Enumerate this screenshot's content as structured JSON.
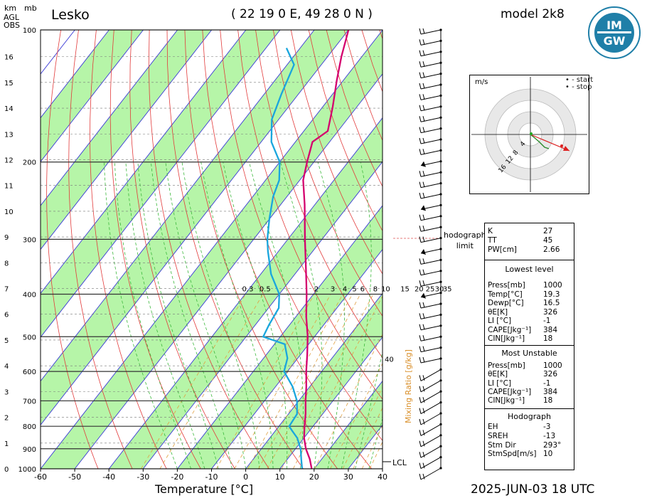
{
  "header": {
    "station": "Lesko",
    "coords": "( 22 19 0 E, 49 28 0 N )",
    "model": "model 2k8",
    "axis_km_title": "km",
    "axis_agl_1": "AGL",
    "axis_agl_2": "OBS",
    "axis_mb_title": "mb"
  },
  "footer": {
    "date": "2025-JUN-03",
    "time": "18 UTC",
    "date_time": "2025-JUN-03   18 UTC",
    "xlabel": "Temperature [°C]"
  },
  "logo": {
    "text_top": "IM",
    "text_bottom": "GW",
    "color": "#1f7fa8"
  },
  "mixing_ratio": {
    "label": "Mixing Ratio [g/kg]",
    "ticks": [
      "0.3",
      "0.5",
      "2",
      "3",
      "4",
      "5",
      "6",
      "8",
      "10",
      "15",
      "20",
      "25",
      "30",
      "35",
      "40"
    ]
  },
  "hodograph": {
    "units": "m/s",
    "legend_start": "• - start",
    "legend_stop": "• - stop",
    "ring_labels": [
      "4",
      "8",
      "12",
      "16"
    ],
    "limit_label_1": "hodograph",
    "limit_label_2": "limit",
    "colors": {
      "start": "#22aa22",
      "stop": "#dd2222"
    }
  },
  "lcl_label": "LCL",
  "indices": {
    "top": [
      {
        "k": "K",
        "v": "27"
      },
      {
        "k": "TT",
        "v": "45"
      },
      {
        "k": "PW[cm]",
        "v": "2.66"
      }
    ],
    "lowest_level_title": "Lowest level",
    "lowest_level": [
      {
        "k": "Press[mb]",
        "v": "1000"
      },
      {
        "k": "Temp[°C]",
        "v": "19.3"
      },
      {
        "k": "Dewp[°C]",
        "v": "16.5"
      },
      {
        "k": "θE[K]",
        "v": "326"
      },
      {
        "k": "LI [°C]",
        "v": "-1"
      },
      {
        "k": "CAPE[Jkg⁻¹]",
        "v": "384"
      },
      {
        "k": "CIN[Jkg⁻¹]",
        "v": "18"
      }
    ],
    "most_unstable_title": "Most Unstable",
    "most_unstable": [
      {
        "k": "Press[mb]",
        "v": "1000"
      },
      {
        "k": "θE[K]",
        "v": "326"
      },
      {
        "k": "LI [°C]",
        "v": "-1"
      },
      {
        "k": "CAPE[Jkg⁻¹]",
        "v": "384"
      },
      {
        "k": "CIN[Jkg⁻¹]",
        "v": "18"
      }
    ],
    "hodograph_title": "Hodograph",
    "hodograph": [
      {
        "k": "EH",
        "v": "-3"
      },
      {
        "k": "SREH",
        "v": "-13"
      },
      {
        "k": "Stm Dir",
        "v": "293°"
      },
      {
        "k": "StmSpd[m/s]",
        "v": "10"
      }
    ]
  },
  "chart_data": {
    "type": "line",
    "subtype": "skew-T log-P diagram",
    "xlabel": "Temperature [°C]",
    "ylabel": "mb",
    "x_ticks": [
      -60,
      -50,
      -40,
      -30,
      -20,
      -10,
      0,
      10,
      20,
      30,
      40
    ],
    "pressure_ticks": [
      100,
      200,
      300,
      400,
      500,
      600,
      700,
      800,
      900,
      1000
    ],
    "height_ticks_km": [
      0,
      1,
      2,
      3,
      4,
      5,
      6,
      7,
      8,
      9,
      10,
      11,
      12,
      13,
      14,
      15,
      16
    ],
    "xlim": [
      -60,
      40
    ],
    "ylim_mb": [
      1000,
      100
    ],
    "series": [
      {
        "name": "Temperature",
        "color": "#d4006e",
        "points": [
          [
            1000,
            19.3
          ],
          [
            950,
            16.5
          ],
          [
            900,
            13
          ],
          [
            850,
            10
          ],
          [
            800,
            7.5
          ],
          [
            750,
            5
          ],
          [
            700,
            2
          ],
          [
            650,
            -1
          ],
          [
            600,
            -4.5
          ],
          [
            550,
            -8
          ],
          [
            500,
            -12
          ],
          [
            450,
            -17
          ],
          [
            400,
            -22
          ],
          [
            350,
            -28
          ],
          [
            300,
            -35
          ],
          [
            250,
            -43
          ],
          [
            220,
            -49
          ],
          [
            200,
            -52
          ],
          [
            180,
            -55
          ],
          [
            170,
            -53
          ],
          [
            150,
            -57
          ],
          [
            130,
            -62
          ],
          [
            115,
            -66
          ],
          [
            100,
            -70
          ]
        ]
      },
      {
        "name": "Dew point",
        "color": "#1aa6dd",
        "points": [
          [
            1000,
            16.5
          ],
          [
            950,
            14
          ],
          [
            900,
            11.5
          ],
          [
            850,
            8
          ],
          [
            820,
            5
          ],
          [
            800,
            3
          ],
          [
            750,
            2.5
          ],
          [
            700,
            -0.5
          ],
          [
            650,
            -5
          ],
          [
            600,
            -11
          ],
          [
            560,
            -13
          ],
          [
            520,
            -17
          ],
          [
            500,
            -25
          ],
          [
            470,
            -26
          ],
          [
            430,
            -27
          ],
          [
            400,
            -30
          ],
          [
            360,
            -37
          ],
          [
            320,
            -43
          ],
          [
            300,
            -46
          ],
          [
            270,
            -50
          ],
          [
            240,
            -54
          ],
          [
            220,
            -56
          ],
          [
            200,
            -60
          ],
          [
            180,
            -67
          ],
          [
            160,
            -72
          ],
          [
            140,
            -75
          ],
          [
            120,
            -78
          ],
          [
            110,
            -84
          ]
        ]
      }
    ],
    "wind_barbs_note": "wind barbs shown on right-hand mast"
  }
}
